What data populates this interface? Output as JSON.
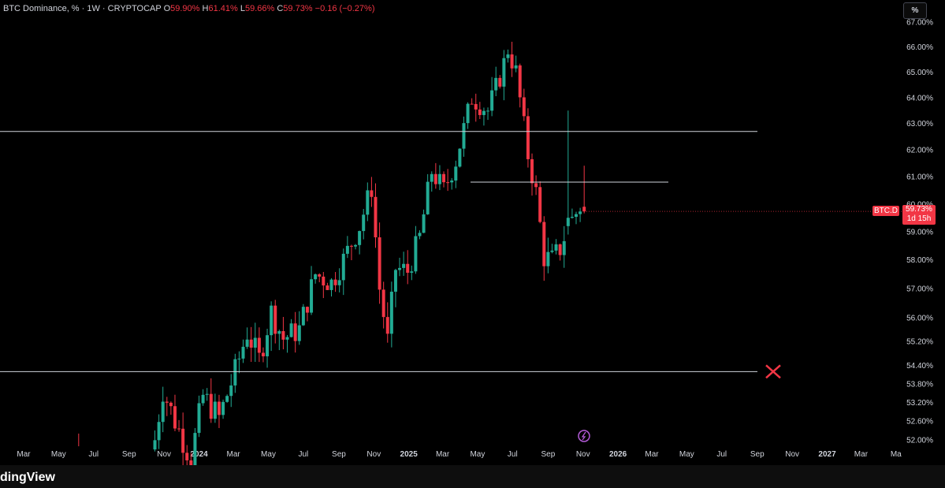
{
  "legend": {
    "title": "BTC Dominance, % · 1W · CRYPTOCAP",
    "o_label": "O",
    "o": "59.90%",
    "h_label": "H",
    "h": "61.41%",
    "l_label": "L",
    "l": "59.66%",
    "c_label": "C",
    "c": "59.73%",
    "change": "−0.16 (−0.27%)"
  },
  "toolbar": {
    "percent_button": "%"
  },
  "price_badge": {
    "symbol": "BTC.D",
    "price": "59.73%",
    "countdown": "1d 15h"
  },
  "branding": {
    "text": "dingView"
  },
  "colors": {
    "up": "#22ab94",
    "down": "#f23645",
    "line": "#d1d4dc",
    "background": "#000000"
  },
  "chart_data": {
    "type": "candlestick",
    "title": "BTC Dominance, % · 1W · CRYPTOCAP",
    "y_axis": {
      "ticks": [
        52.0,
        52.6,
        53.2,
        53.8,
        54.4,
        55.2,
        56.0,
        57.0,
        58.0,
        59.0,
        60.0,
        61.0,
        62.0,
        63.0,
        64.0,
        65.0,
        66.0,
        67.0
      ],
      "tick_labels": [
        "52.00%",
        "52.60%",
        "53.20%",
        "53.80%",
        "54.40%",
        "55.20%",
        "56.00%",
        "57.00%",
        "58.00%",
        "59.00%",
        "60.00%",
        "61.00%",
        "62.00%",
        "63.00%",
        "64.00%",
        "65.00%",
        "66.00%",
        "67.00%"
      ],
      "scale": "log"
    },
    "x_axis": {
      "tick_labels": [
        "Mar",
        "May",
        "Jul",
        "Sep",
        "Nov",
        "2024",
        "Mar",
        "May",
        "Jul",
        "Sep",
        "Nov",
        "2025",
        "Mar",
        "May",
        "Jul",
        "Sep",
        "Nov",
        "2026",
        "Mar",
        "May",
        "Jul",
        "Sep",
        "Nov",
        "2027",
        "Mar",
        "Ma"
      ],
      "bold_labels": [
        "2024",
        "2025",
        "2026",
        "2027"
      ]
    },
    "horizontal_levels": [
      {
        "value": 62.7,
        "span": "full"
      },
      {
        "value": 60.8,
        "span": "partial"
      },
      {
        "value": 54.2,
        "span": "full",
        "marker": "invalidated"
      }
    ],
    "last_price": 59.73,
    "anchors": [
      [
        "2023-06-05",
        51.8
      ],
      [
        "2023-10-16",
        52.0
      ],
      [
        "2023-10-30",
        53.6
      ],
      [
        "2023-11-20",
        52.6
      ],
      [
        "2023-12-18",
        51.4
      ],
      [
        "2024-01-08",
        53.4
      ],
      [
        "2024-02-05",
        52.7
      ],
      [
        "2024-03-04",
        54.2
      ],
      [
        "2024-03-25",
        55.5
      ],
      [
        "2024-04-15",
        54.6
      ],
      [
        "2024-05-06",
        56.2
      ],
      [
        "2024-05-27",
        55.3
      ],
      [
        "2024-06-24",
        55.6
      ],
      [
        "2024-07-22",
        57.5
      ],
      [
        "2024-08-19",
        57.2
      ],
      [
        "2024-09-09",
        58.0
      ],
      [
        "2024-10-07",
        59.2
      ],
      [
        "2024-10-28",
        60.6
      ],
      [
        "2024-11-11",
        57.0
      ],
      [
        "2024-11-25",
        55.2
      ],
      [
        "2024-12-09",
        57.7
      ],
      [
        "2024-12-30",
        57.6
      ],
      [
        "2025-01-20",
        58.8
      ],
      [
        "2025-02-10",
        61.2
      ],
      [
        "2025-03-03",
        60.5
      ],
      [
        "2025-03-24",
        61.6
      ],
      [
        "2025-04-21",
        64.0
      ],
      [
        "2025-05-19",
        63.5
      ],
      [
        "2025-06-09",
        64.8
      ],
      [
        "2025-06-23",
        65.9
      ],
      [
        "2025-07-07",
        65.0
      ],
      [
        "2025-07-28",
        61.8
      ],
      [
        "2025-08-11",
        60.4
      ],
      [
        "2025-08-25",
        58.1
      ],
      [
        "2025-09-08",
        58.0
      ],
      [
        "2025-09-22",
        58.4
      ],
      [
        "2025-10-06",
        59.2
      ],
      [
        "2025-10-27",
        59.9
      ],
      [
        "2025-11-03",
        59.73
      ]
    ],
    "special_candles": [
      {
        "date": "2025-10-06",
        "open": 59.2,
        "high": 63.5,
        "low": 58.9,
        "close": 59.5
      },
      {
        "date": "2025-11-03",
        "open": 59.9,
        "high": 61.41,
        "low": 59.66,
        "close": 59.73
      }
    ]
  }
}
